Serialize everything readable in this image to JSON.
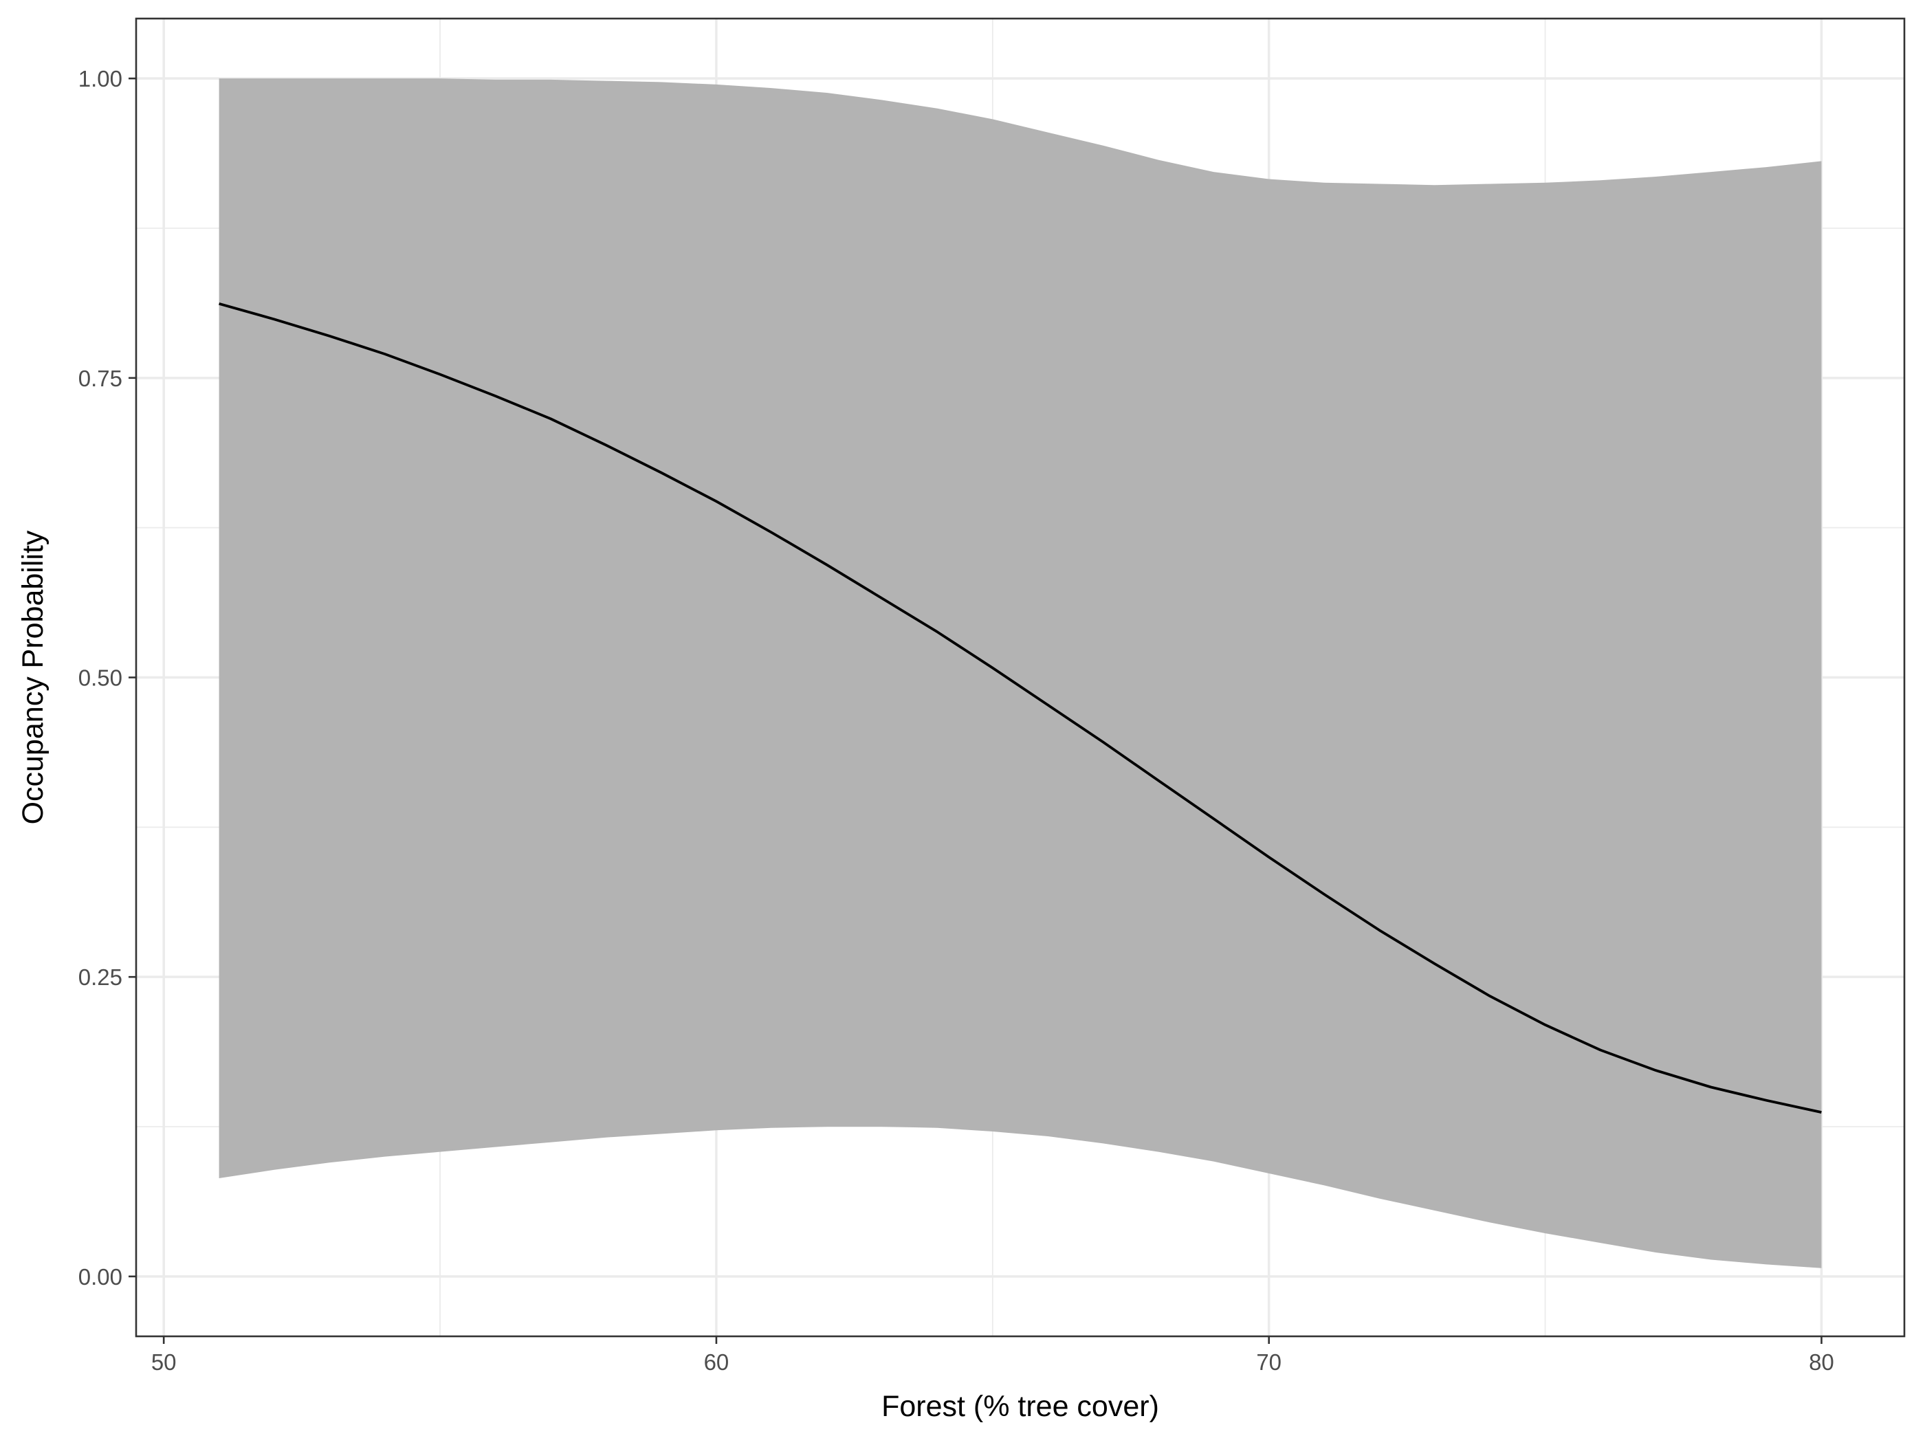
{
  "chart_data": {
    "type": "line",
    "title": "",
    "xlabel": "Forest (% tree cover)",
    "ylabel": "Occupancy Probability",
    "xlim": [
      49.5,
      81.5
    ],
    "ylim": [
      -0.05,
      1.05
    ],
    "x_ticks": [
      50,
      60,
      70,
      80
    ],
    "x_tick_labels": [
      "50",
      "60",
      "70",
      "80"
    ],
    "y_ticks": [
      0,
      0.25,
      0.5,
      0.75,
      1.0
    ],
    "y_tick_labels": [
      "0.00",
      "0.25",
      "0.50",
      "0.75",
      "1.00"
    ],
    "x_minor_ticks": [
      55,
      65,
      75
    ],
    "y_minor_ticks": [
      0.125,
      0.375,
      0.625,
      0.875
    ],
    "grid": true,
    "series": [
      {
        "values": [
          {
            "x": 51.0,
            "y": 0.812
          },
          {
            "x": 52.0,
            "y": 0.799
          },
          {
            "x": 53.0,
            "y": 0.785
          },
          {
            "x": 54.0,
            "y": 0.77
          },
          {
            "x": 55.0,
            "y": 0.753
          },
          {
            "x": 56.0,
            "y": 0.735
          },
          {
            "x": 57.0,
            "y": 0.716
          },
          {
            "x": 58.0,
            "y": 0.694
          },
          {
            "x": 59.0,
            "y": 0.671
          },
          {
            "x": 60.0,
            "y": 0.647
          },
          {
            "x": 61.0,
            "y": 0.621
          },
          {
            "x": 62.0,
            "y": 0.594
          },
          {
            "x": 63.0,
            "y": 0.566
          },
          {
            "x": 64.0,
            "y": 0.538
          },
          {
            "x": 65.0,
            "y": 0.508
          },
          {
            "x": 66.0,
            "y": 0.477
          },
          {
            "x": 67.0,
            "y": 0.446
          },
          {
            "x": 68.0,
            "y": 0.414
          },
          {
            "x": 69.0,
            "y": 0.382
          },
          {
            "x": 70.0,
            "y": 0.35
          },
          {
            "x": 71.0,
            "y": 0.319
          },
          {
            "x": 72.0,
            "y": 0.289
          },
          {
            "x": 73.0,
            "y": 0.261
          },
          {
            "x": 74.0,
            "y": 0.234
          },
          {
            "x": 75.0,
            "y": 0.21
          },
          {
            "x": 76.0,
            "y": 0.189
          },
          {
            "x": 77.0,
            "y": 0.172
          },
          {
            "x": 78.0,
            "y": 0.158
          },
          {
            "x": 79.0,
            "y": 0.147
          },
          {
            "x": 80.0,
            "y": 0.137
          }
        ]
      }
    ],
    "ribbon": {
      "color": "#b3b3b3",
      "values": [
        {
          "x": 51.0,
          "lower": 0.082,
          "upper": 1.0
        },
        {
          "x": 52.0,
          "lower": 0.089,
          "upper": 1.0
        },
        {
          "x": 53.0,
          "lower": 0.095,
          "upper": 1.0
        },
        {
          "x": 54.0,
          "lower": 0.1,
          "upper": 1.0
        },
        {
          "x": 55.0,
          "lower": 0.104,
          "upper": 1.0
        },
        {
          "x": 56.0,
          "lower": 0.108,
          "upper": 0.999
        },
        {
          "x": 57.0,
          "lower": 0.112,
          "upper": 0.999
        },
        {
          "x": 58.0,
          "lower": 0.116,
          "upper": 0.998
        },
        {
          "x": 59.0,
          "lower": 0.119,
          "upper": 0.997
        },
        {
          "x": 60.0,
          "lower": 0.122,
          "upper": 0.995
        },
        {
          "x": 61.0,
          "lower": 0.124,
          "upper": 0.992
        },
        {
          "x": 62.0,
          "lower": 0.125,
          "upper": 0.988
        },
        {
          "x": 63.0,
          "lower": 0.125,
          "upper": 0.982
        },
        {
          "x": 64.0,
          "lower": 0.124,
          "upper": 0.975
        },
        {
          "x": 65.0,
          "lower": 0.121,
          "upper": 0.966
        },
        {
          "x": 66.0,
          "lower": 0.117,
          "upper": 0.955
        },
        {
          "x": 67.0,
          "lower": 0.111,
          "upper": 0.944
        },
        {
          "x": 68.0,
          "lower": 0.104,
          "upper": 0.932
        },
        {
          "x": 69.0,
          "lower": 0.096,
          "upper": 0.922
        },
        {
          "x": 70.0,
          "lower": 0.086,
          "upper": 0.916
        },
        {
          "x": 71.0,
          "lower": 0.076,
          "upper": 0.913
        },
        {
          "x": 72.0,
          "lower": 0.065,
          "upper": 0.912
        },
        {
          "x": 73.0,
          "lower": 0.055,
          "upper": 0.911
        },
        {
          "x": 74.0,
          "lower": 0.045,
          "upper": 0.912
        },
        {
          "x": 75.0,
          "lower": 0.036,
          "upper": 0.913
        },
        {
          "x": 76.0,
          "lower": 0.028,
          "upper": 0.915
        },
        {
          "x": 77.0,
          "lower": 0.02,
          "upper": 0.918
        },
        {
          "x": 78.0,
          "lower": 0.014,
          "upper": 0.922
        },
        {
          "x": 79.0,
          "lower": 0.01,
          "upper": 0.926
        },
        {
          "x": 80.0,
          "lower": 0.007,
          "upper": 0.931
        }
      ]
    },
    "colors": {
      "line": "#000000",
      "ribbon": "#b3b3b3",
      "grid": "#ebebeb",
      "panel_border": "#333333",
      "background": "#ffffff"
    }
  }
}
